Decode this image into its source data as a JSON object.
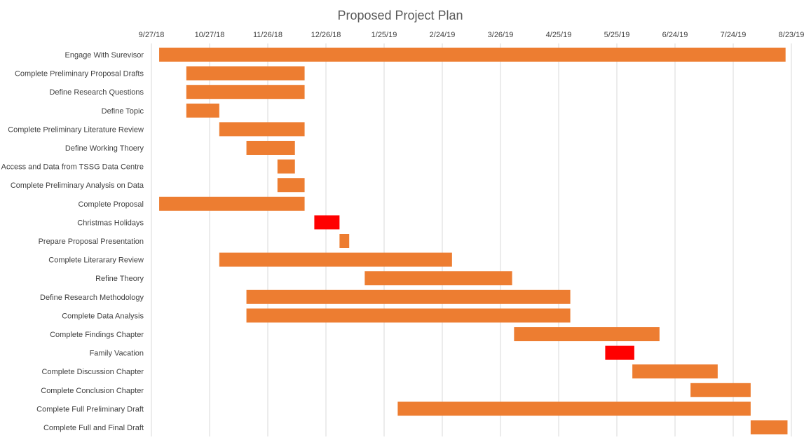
{
  "chart_data": {
    "type": "bar",
    "orientation": "horizontal",
    "title": "Proposed Project Plan",
    "x_axis_position": "top",
    "grid": true,
    "legend": "none",
    "x_ticks": [
      "9/27/18",
      "10/27/18",
      "11/26/18",
      "12/26/18",
      "1/25/19",
      "2/24/19",
      "3/26/19",
      "4/25/19",
      "5/25/19",
      "6/24/19",
      "7/24/19",
      "8/23/19"
    ],
    "xlim": [
      "2018-09-27",
      "2019-08-23"
    ],
    "colors": {
      "task": "#ed7d31",
      "holiday": "#ff0000",
      "grid": "#d9d9d9",
      "title": "#595959",
      "label": "#404040"
    },
    "tasks": [
      {
        "name": "Engage With Surevisor",
        "start": "2018-10-01",
        "end": "2019-08-20",
        "kind": "task"
      },
      {
        "name": "Complete Preliminary Proposal Drafts",
        "start": "2018-10-15",
        "end": "2018-12-15",
        "kind": "task"
      },
      {
        "name": "Define Research Questions",
        "start": "2018-10-15",
        "end": "2018-12-15",
        "kind": "task"
      },
      {
        "name": "Define Topic",
        "start": "2018-10-15",
        "end": "2018-11-01",
        "kind": "task"
      },
      {
        "name": "Complete Preliminary Literature Review",
        "start": "2018-11-01",
        "end": "2018-12-15",
        "kind": "task"
      },
      {
        "name": "Define Working Thoery",
        "start": "2018-11-15",
        "end": "2018-12-10",
        "kind": "task"
      },
      {
        "name": "Access and  Data from TSSG Data Centre",
        "start": "2018-12-01",
        "end": "2018-12-10",
        "kind": "task"
      },
      {
        "name": "Complete Preliminary Analysis on Data",
        "start": "2018-12-01",
        "end": "2018-12-15",
        "kind": "task"
      },
      {
        "name": "Complete Proposal",
        "start": "2018-10-01",
        "end": "2018-12-15",
        "kind": "task"
      },
      {
        "name": "Christmas Holidays",
        "start": "2018-12-20",
        "end": "2019-01-02",
        "kind": "holiday"
      },
      {
        "name": "Prepare Proposal Presentation",
        "start": "2019-01-02",
        "end": "2019-01-07",
        "kind": "task"
      },
      {
        "name": "Complete Literarary Review",
        "start": "2018-11-01",
        "end": "2019-03-01",
        "kind": "task"
      },
      {
        "name": "Refine Theory",
        "start": "2019-01-15",
        "end": "2019-04-01",
        "kind": "task"
      },
      {
        "name": "Define Research Methodology",
        "start": "2018-11-15",
        "end": "2019-05-01",
        "kind": "task"
      },
      {
        "name": "Complete Data Analysis",
        "start": "2018-11-15",
        "end": "2019-05-01",
        "kind": "task"
      },
      {
        "name": "Complete Findings Chapter",
        "start": "2019-04-02",
        "end": "2019-06-16",
        "kind": "task"
      },
      {
        "name": "Family Vacation",
        "start": "2019-05-19",
        "end": "2019-06-03",
        "kind": "holiday"
      },
      {
        "name": "Complete Discussion Chapter",
        "start": "2019-06-02",
        "end": "2019-07-16",
        "kind": "task"
      },
      {
        "name": "Complete Conclusion Chapter",
        "start": "2019-07-02",
        "end": "2019-08-02",
        "kind": "task"
      },
      {
        "name": "Complete Full Preliminary Draft",
        "start": "2019-02-01",
        "end": "2019-08-02",
        "kind": "task"
      },
      {
        "name": "Complete Full and Final Draft",
        "start": "2019-08-02",
        "end": "2019-08-21",
        "kind": "task"
      }
    ]
  }
}
